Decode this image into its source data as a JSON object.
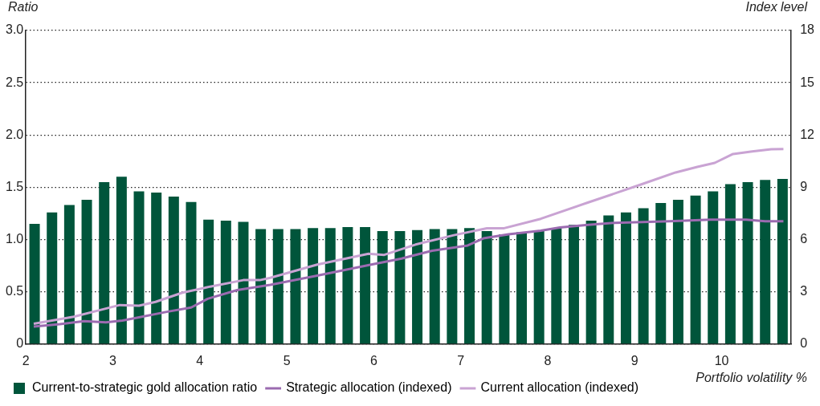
{
  "chart_data": {
    "type": "bar",
    "ylabel": "Ratio",
    "y2label": "Index level",
    "xlabel": "Portfolio volatility %",
    "xlim": [
      2,
      10.8
    ],
    "xticks": [
      2,
      3,
      4,
      5,
      6,
      7,
      8,
      9,
      10
    ],
    "ylim": [
      0,
      3
    ],
    "yticks": [
      0,
      0.5,
      {
        "value": 1,
        "label": "1.0"
      },
      1.5,
      {
        "value": 2,
        "label": "2.0"
      },
      2.5,
      {
        "value": 3,
        "label": "3.0"
      }
    ],
    "y2lim": [
      0,
      18
    ],
    "y2ticks": [
      0,
      3,
      6,
      9,
      12,
      15,
      18
    ],
    "grid": "y",
    "legend": "bottom",
    "series": [
      {
        "name": "Current-to-strategic gold allocation ratio",
        "color": "#00553b",
        "x": [
          2.1,
          2.3,
          2.5,
          2.7,
          2.9,
          3.1,
          3.3,
          3.5,
          3.7,
          3.9,
          4.1,
          4.3,
          4.5,
          4.7,
          4.9,
          5.1,
          5.3,
          5.5,
          5.7,
          5.9,
          6.1,
          6.3,
          6.5,
          6.7,
          6.9,
          7.1,
          7.3,
          7.5,
          7.7,
          7.9,
          8.1,
          8.3,
          8.5,
          8.7,
          8.9,
          9.1,
          9.3,
          9.5,
          9.7,
          9.9,
          10.1,
          10.3,
          10.5,
          10.7
        ],
        "values": [
          1.15,
          1.26,
          1.33,
          1.38,
          1.55,
          1.6,
          1.46,
          1.45,
          1.41,
          1.36,
          1.19,
          1.18,
          1.17,
          1.1,
          1.1,
          1.1,
          1.11,
          1.11,
          1.12,
          1.12,
          1.08,
          1.08,
          1.09,
          1.1,
          1.1,
          1.11,
          1.08,
          1.05,
          1.07,
          1.08,
          1.11,
          1.14,
          1.18,
          1.23,
          1.26,
          1.3,
          1.35,
          1.38,
          1.42,
          1.46,
          1.53,
          1.55,
          1.57,
          1.58
        ]
      },
      {
        "name": "Strategic allocation (indexed)",
        "type": "line",
        "axis": "y2",
        "color": "#9b6bb0",
        "x": [
          2.09,
          2.39,
          2.67,
          2.92,
          3.11,
          3.3,
          3.62,
          3.9,
          4.09,
          4.43,
          4.81,
          5.35,
          5.97,
          6.32,
          6.67,
          7.08,
          7.26,
          7.55,
          7.92,
          8.14,
          8.46,
          8.77,
          9.4,
          9.87,
          10.28,
          10.5,
          10.71
        ],
        "values": [
          1.0,
          1.14,
          1.32,
          1.25,
          1.35,
          1.53,
          1.85,
          2.1,
          2.6,
          3.1,
          3.4,
          3.93,
          4.56,
          4.91,
          5.36,
          5.66,
          6.07,
          6.3,
          6.51,
          6.69,
          6.84,
          6.96,
          7.05,
          7.14,
          7.14,
          7.05,
          7.05
        ]
      },
      {
        "name": "Current allocation (indexed)",
        "type": "line",
        "axis": "y2",
        "color": "#c9a3d3",
        "x": [
          2.09,
          2.55,
          2.89,
          3.08,
          3.3,
          3.49,
          3.8,
          4.12,
          4.5,
          4.69,
          4.81,
          5.35,
          5.94,
          6.12,
          6.48,
          6.92,
          7.3,
          7.5,
          7.92,
          8.46,
          9.09,
          9.47,
          9.72,
          9.92,
          10.13,
          10.35,
          10.57,
          10.71
        ],
        "values": [
          1.17,
          1.57,
          2.0,
          2.24,
          2.2,
          2.42,
          2.95,
          3.3,
          3.67,
          3.67,
          3.8,
          4.56,
          5.18,
          5.12,
          5.71,
          6.25,
          6.65,
          6.65,
          7.19,
          8.12,
          9.19,
          9.85,
          10.17,
          10.4,
          10.91,
          11.06,
          11.18,
          11.2
        ]
      }
    ]
  }
}
